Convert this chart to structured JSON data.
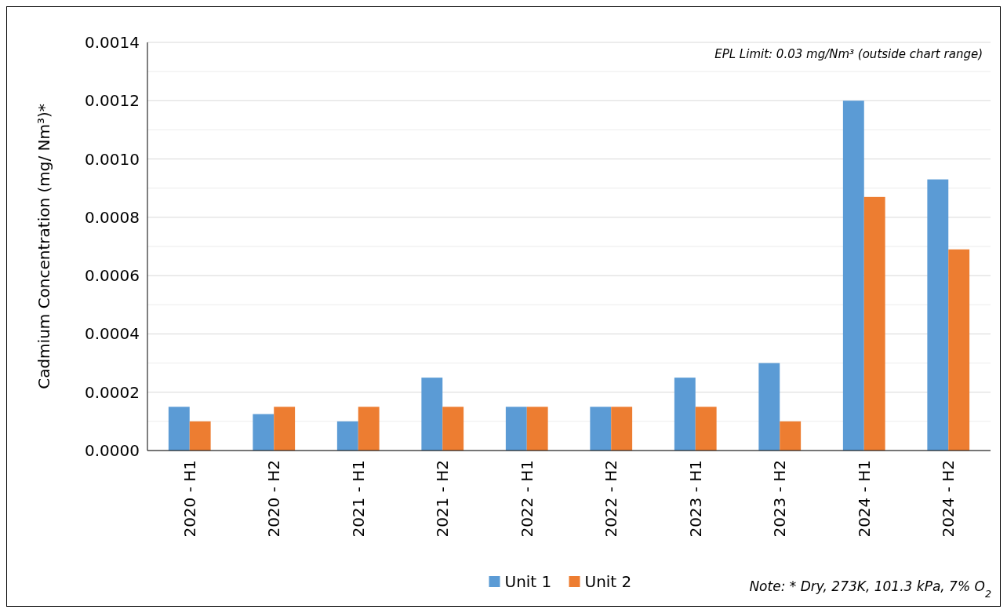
{
  "chart_data": {
    "type": "bar",
    "ylabel": "Cadmium Concentration (mg/ Nm³)*",
    "categories": [
      "2020 - H1",
      "2020 - H2",
      "2021 - H1",
      "2021 - H2",
      "2022 - H1",
      "2022 - H2",
      "2023 - H1",
      "2023 - H2",
      "2024 - H1",
      "2024 - H2"
    ],
    "series": [
      {
        "name": "Unit 1",
        "color": "#5b9bd5",
        "values": [
          0.00015,
          0.000125,
          0.0001,
          0.00025,
          0.00015,
          0.00015,
          0.00025,
          0.0003,
          0.0012,
          0.00093
        ]
      },
      {
        "name": "Unit 2",
        "color": "#ed7d31",
        "values": [
          0.0001,
          0.00015,
          0.00015,
          0.00015,
          0.00015,
          0.00015,
          0.00015,
          0.0001,
          0.00087,
          0.00069
        ]
      }
    ],
    "ylim": [
      0,
      0.0014
    ],
    "yticks": [
      {
        "value": 0,
        "label": "0.0000"
      },
      {
        "value": 0.0001,
        "label": null
      },
      {
        "value": 0.0002,
        "label": "0.0002"
      },
      {
        "value": 0.0003,
        "label": null
      },
      {
        "value": 0.0004,
        "label": "0.0004"
      },
      {
        "value": 0.0005,
        "label": null
      },
      {
        "value": 0.0006,
        "label": "0.0006"
      },
      {
        "value": 0.0007,
        "label": null
      },
      {
        "value": 0.0008,
        "label": "0.0008"
      },
      {
        "value": 0.0009,
        "label": null
      },
      {
        "value": 0.001,
        "label": "0.0010"
      },
      {
        "value": 0.0011,
        "label": null
      },
      {
        "value": 0.0012,
        "label": "0.0012"
      },
      {
        "value": 0.0013,
        "label": null
      },
      {
        "value": 0.0014,
        "label": "0.0014"
      }
    ],
    "grid": "y",
    "legend": "bottom",
    "annotations": [
      "EPL Limit: 0.03 mg/Nm³ (outside chart range)",
      "Note: * Dry, 273K, 101.3 kPa, 7% O$_{2}$"
    ]
  }
}
